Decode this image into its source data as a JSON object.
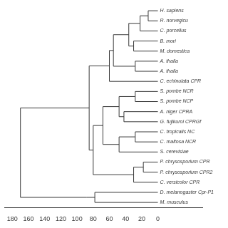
{
  "chart_data": {
    "type": "dendrogram",
    "color": "#3a3a3a",
    "grid": false,
    "xlim": [
      190,
      -55
    ],
    "xticks": [
      180,
      160,
      140,
      120,
      100,
      80,
      60,
      40,
      20,
      0
    ],
    "tree": {
      "x": 170,
      "children": [
        {
          "x": 85,
          "children": [
            {
              "x": 60,
              "children": [
                {
                  "x": 55,
                  "children": [
                    {
                      "x": 36,
                      "children": [
                        {
                          "x": 22,
                          "children": [
                            {
                              "x": 12,
                              "children": [
                                {
                                  "name": "H. sapiens",
                                  "x": 0
                                },
                                {
                                  "name": "R. norvegicu",
                                  "x": 0
                                }
                              ]
                            },
                            {
                              "name": "C. porcellus",
                              "x": 0
                            }
                          ]
                        },
                        {
                          "x": 30,
                          "children": [
                            {
                              "name": "B. mori",
                              "x": 0
                            },
                            {
                              "name": "M. domestica",
                              "x": 0
                            }
                          ]
                        }
                      ]
                    },
                    {
                      "x": 28,
                      "children": [
                        {
                          "name": "A. thalia",
                          "x": 0
                        },
                        {
                          "name": "A. thalia",
                          "x": 0
                        }
                      ]
                    }
                  ]
                },
                {
                  "name": "C. echinulata CPR",
                  "x": 0
                }
              ]
            },
            {
              "x": 80,
              "children": [
                {
                  "x": 68,
                  "children": [
                    {
                      "x": 48,
                      "children": [
                        {
                          "x": 28,
                          "children": [
                            {
                              "name": "S. pombe NCR",
                              "x": 0
                            },
                            {
                              "name": "S. pombe NCP",
                              "x": 0
                            }
                          ]
                        },
                        {
                          "x": 42,
                          "children": [
                            {
                              "name": "A. niger CPRA",
                              "x": 0
                            },
                            {
                              "name": "G. fujikuroi CPRGf",
                              "x": 0
                            }
                          ]
                        }
                      ]
                    },
                    {
                      "x": 48,
                      "children": [
                        {
                          "x": 28,
                          "children": [
                            {
                              "name": "C. tropicalis NC",
                              "x": 0
                            },
                            {
                              "name": "C. maltosa NCR",
                              "x": 0
                            }
                          ]
                        },
                        {
                          "name": "S. cerevisiae",
                          "x": 0
                        }
                      ]
                    }
                  ]
                },
                {
                  "x": 30,
                  "children": [
                    {
                      "x": 18,
                      "children": [
                        {
                          "name": "P. chrysosporium CPR",
                          "x": 0
                        },
                        {
                          "name": "P. chrysosporium CPR2",
                          "x": 0
                        }
                      ]
                    },
                    {
                      "name": "C. versicolor CPR",
                      "x": 0
                    }
                  ]
                }
              ]
            }
          ]
        },
        {
          "x": 88,
          "children": [
            {
              "x": 78,
              "children": [
                {
                  "name": "D. melanogaster Cpr-P1",
                  "x": 0
                },
                {
                  "name": "M. musculus",
                  "x": 0
                }
              ]
            }
          ]
        }
      ]
    }
  }
}
